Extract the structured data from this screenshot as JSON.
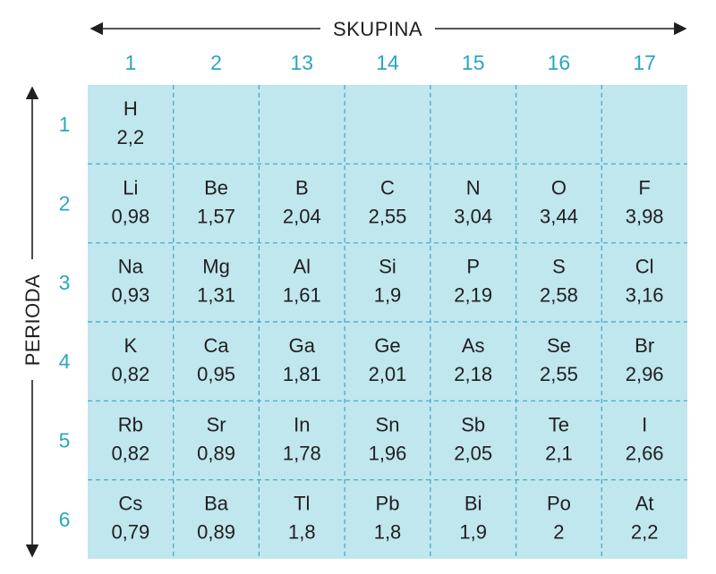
{
  "colors": {
    "cell_fill": "#c0e6ee",
    "grid_line": "#3aa9c2",
    "label_color": "#2aa7bf",
    "text_color": "#1f1f1f",
    "arrow_color": "#1f1f1f"
  },
  "axes": {
    "group_title": "SKUPINA",
    "period_title": "PERIODA"
  },
  "groups": [
    "1",
    "2",
    "13",
    "14",
    "15",
    "16",
    "17"
  ],
  "periods": [
    "1",
    "2",
    "3",
    "4",
    "5",
    "6"
  ],
  "rows": [
    [
      {
        "symbol": "H",
        "value": "2,2"
      },
      null,
      null,
      null,
      null,
      null,
      null
    ],
    [
      {
        "symbol": "Li",
        "value": "0,98"
      },
      {
        "symbol": "Be",
        "value": "1,57"
      },
      {
        "symbol": "B",
        "value": "2,04"
      },
      {
        "symbol": "C",
        "value": "2,55"
      },
      {
        "symbol": "N",
        "value": "3,04"
      },
      {
        "symbol": "O",
        "value": "3,44"
      },
      {
        "symbol": "F",
        "value": "3,98"
      }
    ],
    [
      {
        "symbol": "Na",
        "value": "0,93"
      },
      {
        "symbol": "Mg",
        "value": "1,31"
      },
      {
        "symbol": "Al",
        "value": "1,61"
      },
      {
        "symbol": "Si",
        "value": "1,9"
      },
      {
        "symbol": "P",
        "value": "2,19"
      },
      {
        "symbol": "S",
        "value": "2,58"
      },
      {
        "symbol": "Cl",
        "value": "3,16"
      }
    ],
    [
      {
        "symbol": "K",
        "value": "0,82"
      },
      {
        "symbol": "Ca",
        "value": "0,95"
      },
      {
        "symbol": "Ga",
        "value": "1,81"
      },
      {
        "symbol": "Ge",
        "value": "2,01"
      },
      {
        "symbol": "As",
        "value": "2,18"
      },
      {
        "symbol": "Se",
        "value": "2,55"
      },
      {
        "symbol": "Br",
        "value": "2,96"
      }
    ],
    [
      {
        "symbol": "Rb",
        "value": "0,82"
      },
      {
        "symbol": "Sr",
        "value": "0,89"
      },
      {
        "symbol": "In",
        "value": "1,78"
      },
      {
        "symbol": "Sn",
        "value": "1,96"
      },
      {
        "symbol": "Sb",
        "value": "2,05"
      },
      {
        "symbol": "Te",
        "value": "2,1"
      },
      {
        "symbol": "I",
        "value": "2,66"
      }
    ],
    [
      {
        "symbol": "Cs",
        "value": "0,79"
      },
      {
        "symbol": "Ba",
        "value": "0,89"
      },
      {
        "symbol": "Tl",
        "value": "1,8"
      },
      {
        "symbol": "Pb",
        "value": "1,8"
      },
      {
        "symbol": "Bi",
        "value": "1,9"
      },
      {
        "symbol": "Po",
        "value": "2"
      },
      {
        "symbol": "At",
        "value": "2,2"
      }
    ]
  ]
}
